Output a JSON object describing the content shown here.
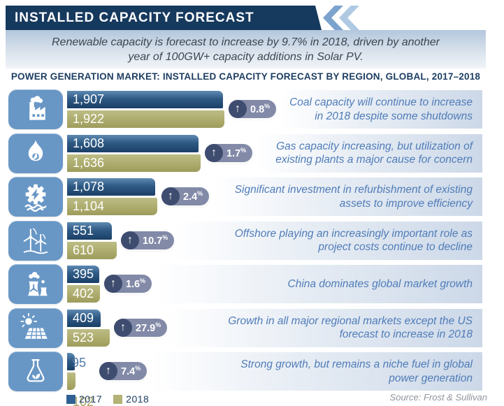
{
  "header": {
    "title": "INSTALLED CAPACITY FORECAST"
  },
  "banner": {
    "text": "Renewable capacity is forecast to increase by 9.7% in 2018, driven by another year of 100GW+ capacity additions in Solar PV."
  },
  "section_title": "POWER GENERATION MARKET: INSTALLED CAPACITY FORECAST BY REGION, GLOBAL, 2017–2018",
  "badge_percent_sign": "%",
  "colors": {
    "header_navy": "#16395e",
    "bar_2017_blue": "#1a3f66",
    "bar_2018_olive": "#abaa6b",
    "icon_tile_blue": "#6897c6",
    "badge_pill": "#828aa8",
    "badge_circle": "#3e4c6f",
    "note_text_blue": "#4f7cb8",
    "note_strip_blue": "#ccd8e8",
    "legend_2017": "#2e6093",
    "legend_2018": "#b3b377"
  },
  "legend": {
    "items": [
      {
        "label": "2017",
        "color": "#2e6093"
      },
      {
        "label": "2018",
        "color": "#b3b377"
      }
    ]
  },
  "source": "Source: Frost & Sullivan",
  "chart_data": {
    "type": "bar",
    "orientation": "horizontal",
    "title": "POWER GENERATION MARKET: INSTALLED CAPACITY FORECAST BY REGION, GLOBAL, 2017–2018",
    "categories": [
      "Coal",
      "Gas",
      "Hydro",
      "Wind",
      "Nuclear",
      "Solar",
      "Bioenergy"
    ],
    "series": [
      {
        "name": "2017",
        "values": [
          1907,
          1608,
          1078,
          551,
          395,
          409,
          95
        ]
      },
      {
        "name": "2018",
        "values": [
          1922,
          1636,
          1104,
          610,
          402,
          523,
          102
        ]
      }
    ],
    "growth_pct": [
      0.8,
      1.7,
      2.4,
      10.7,
      1.6,
      27.9,
      7.4
    ],
    "legend_position": "bottom-left",
    "grid": false,
    "xlim": [
      0,
      1922
    ]
  },
  "rows": [
    {
      "icon": "coal-plant-icon",
      "v2017": "1,907",
      "v2018": "1,922",
      "growth": "0.8",
      "note": "Coal capacity will continue to increase in 2018 despite some shutdowns"
    },
    {
      "icon": "gas-flame-icon",
      "v2017": "1,608",
      "v2018": "1,636",
      "growth": "1.7",
      "note": "Gas capacity increasing, but utilization of existing plants a major cause for concern"
    },
    {
      "icon": "hydro-power-icon",
      "v2017": "1,078",
      "v2018": "1,104",
      "growth": "2.4",
      "note": "Significant investment in refurbishment of existing assets to improve efficiency"
    },
    {
      "icon": "wind-turbine-icon",
      "v2017": "551",
      "v2018": "610",
      "growth": "10.7",
      "note": "Offshore playing an increasingly important role as project costs continue to decline"
    },
    {
      "icon": "nuclear-plant-icon",
      "v2017": "395",
      "v2018": "402",
      "growth": "1.6",
      "note": "China dominates global market growth"
    },
    {
      "icon": "solar-panel-icon",
      "v2017": "409",
      "v2018": "523",
      "growth": "27.9",
      "note": "Growth in all major regional markets except the US forecast to increase in 2018"
    },
    {
      "icon": "bioenergy-flask-icon",
      "v2017": "95",
      "v2018": "102",
      "growth": "7.4",
      "note": "Strong growth, but remains a niche fuel in global power generation"
    }
  ]
}
